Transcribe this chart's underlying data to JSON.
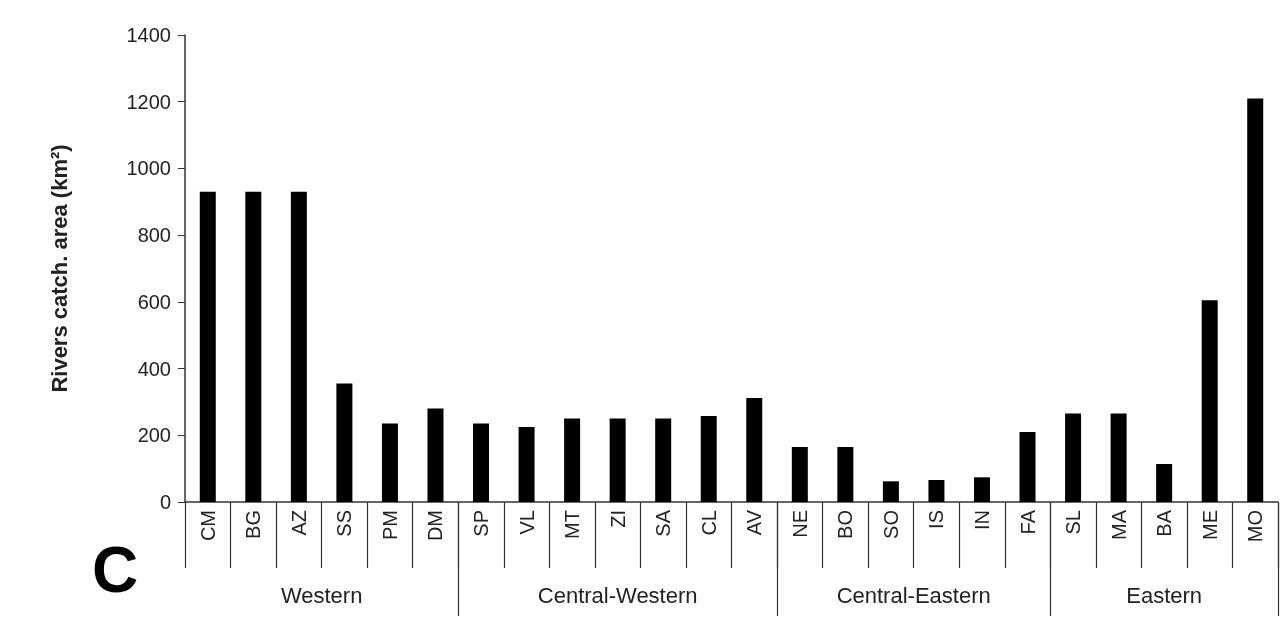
{
  "chart_data": {
    "type": "bar",
    "ylabel": "Rivers catch. area (km²)",
    "categories": [
      "CM",
      "BG",
      "AZ",
      "SS",
      "PM",
      "DM",
      "SP",
      "VL",
      "MT",
      "ZI",
      "SA",
      "CL",
      "AV",
      "NE",
      "BO",
      "SO",
      "IS",
      "IN",
      "FA",
      "SL",
      "MA",
      "BA",
      "ME",
      "MO"
    ],
    "values": [
      930,
      930,
      930,
      355,
      235,
      280,
      235,
      225,
      250,
      250,
      250,
      258,
      312,
      165,
      165,
      62,
      66,
      74,
      210,
      265,
      265,
      114,
      605,
      1210
    ],
    "color": "#000000",
    "ylim": [
      0,
      1400
    ],
    "yticks": [
      0,
      200,
      400,
      600,
      800,
      1000,
      1200,
      1400
    ],
    "grid": false,
    "annotations": [
      "Western",
      "Central-Western",
      "Central-Eastern",
      "Eastern",
      "C"
    ]
  }
}
